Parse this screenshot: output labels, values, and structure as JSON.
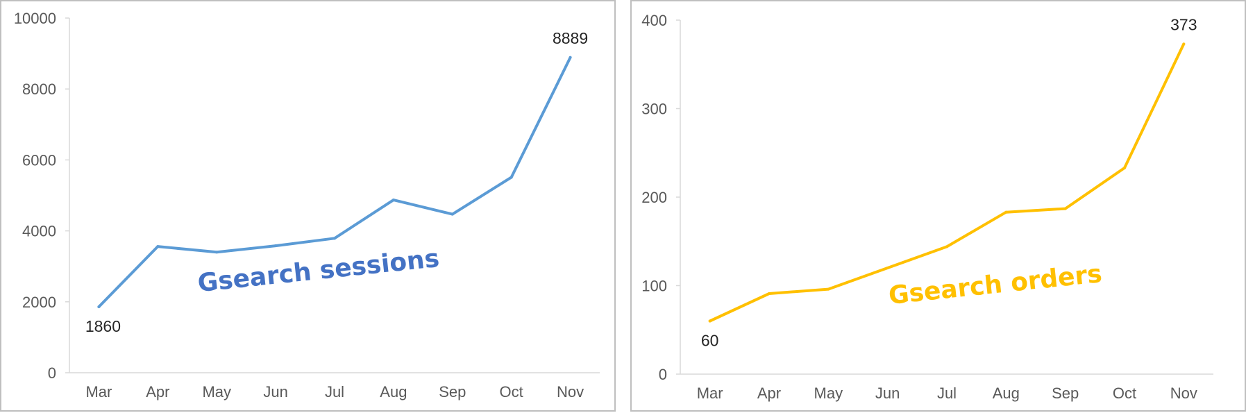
{
  "chart_data": [
    {
      "type": "line",
      "categories": [
        "Mar",
        "Apr",
        "May",
        "Jun",
        "Jul",
        "Aug",
        "Sep",
        "Oct",
        "Nov"
      ],
      "values": [
        1860,
        3560,
        3400,
        3580,
        3790,
        4870,
        4470,
        5510,
        8889
      ],
      "ylim": [
        0,
        10000
      ],
      "yticks": [
        0,
        2000,
        4000,
        6000,
        8000,
        10000
      ],
      "data_labels": [
        {
          "index": 0,
          "text": "1860"
        },
        {
          "index": 8,
          "text": "8889"
        }
      ],
      "annotation": "Gsearch sessions",
      "color": "#5b9bd5",
      "annotation_color": "#4472c4",
      "grid": false,
      "legend": "none"
    },
    {
      "type": "line",
      "categories": [
        "Mar",
        "Apr",
        "May",
        "Jun",
        "Jul",
        "Aug",
        "Sep",
        "Oct",
        "Nov"
      ],
      "values": [
        60,
        91,
        96,
        120,
        144,
        183,
        187,
        233,
        373
      ],
      "ylim": [
        0,
        400
      ],
      "yticks": [
        0,
        100,
        200,
        300,
        400
      ],
      "data_labels": [
        {
          "index": 0,
          "text": "60"
        },
        {
          "index": 8,
          "text": "373"
        }
      ],
      "annotation": "Gsearch orders",
      "color": "#ffc000",
      "annotation_color": "#ffc000",
      "grid": false,
      "legend": "none"
    }
  ]
}
